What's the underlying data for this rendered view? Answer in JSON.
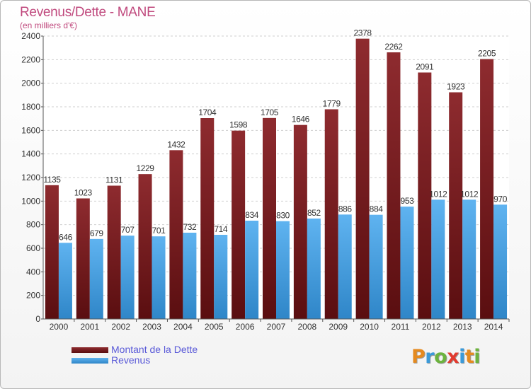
{
  "header": {
    "title": "Revenus/Dette - MANE",
    "subtitle": "(en milliers d'€)"
  },
  "chart_data": {
    "type": "bar",
    "title": "Revenus/Dette - MANE",
    "subtitle": "(en milliers d'€)",
    "categories": [
      "2000",
      "2001",
      "2002",
      "2003",
      "2004",
      "2005",
      "2006",
      "2007",
      "2008",
      "2009",
      "2010",
      "2011",
      "2012",
      "2013",
      "2014"
    ],
    "series": [
      {
        "name": "Montant de la Dette",
        "color": "#7a1f22",
        "values": [
          1135,
          1023,
          1131,
          1229,
          1432,
          1704,
          1598,
          1705,
          1646,
          1779,
          2378,
          2262,
          2091,
          1923,
          2205
        ]
      },
      {
        "name": "Revenus",
        "color": "#4aa3e6",
        "values": [
          646,
          679,
          707,
          701,
          732,
          714,
          834,
          830,
          852,
          886,
          884,
          953,
          1012,
          1012,
          970
        ]
      }
    ],
    "ylim": [
      0,
      2400
    ],
    "yticks": [
      0,
      200,
      400,
      600,
      800,
      1000,
      1200,
      1400,
      1600,
      1800,
      2000,
      2200,
      2400
    ],
    "grid": true,
    "legend_position": "bottom-left"
  },
  "legend": {
    "items": [
      {
        "label": "Montant de la Dette",
        "color": "#7a1f22"
      },
      {
        "label": "Revenus",
        "color": "#4aa3e6"
      }
    ]
  },
  "logo": {
    "letters": [
      {
        "ch": "P",
        "color": "#e58a1f"
      },
      {
        "ch": "r",
        "color": "#3a9ad9"
      },
      {
        "ch": "o",
        "color": "#6cb33e"
      },
      {
        "ch": "x",
        "color": "#e23a2e"
      },
      {
        "ch": "i",
        "color": "#3a9ad9"
      },
      {
        "ch": "t",
        "color": "#e58a1f"
      },
      {
        "ch": "i",
        "color": "#6cb33e"
      }
    ]
  }
}
